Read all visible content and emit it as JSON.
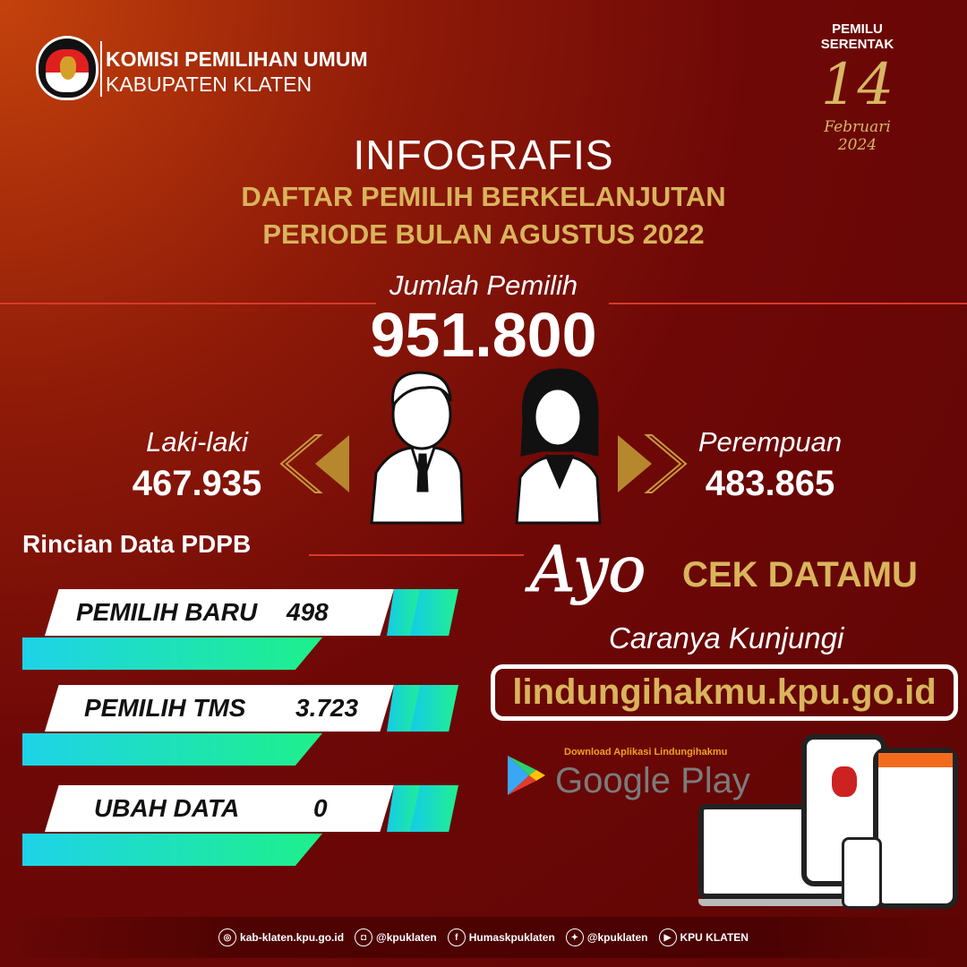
{
  "header": {
    "org_name": "KOMISI PEMILIHAN UMUM",
    "org_region": "KABUPATEN KLATEN",
    "logo_text": "KOMISI PEMILIHAN UMUM"
  },
  "badge": {
    "line1": "PEMILU",
    "line2": "SERENTAK",
    "day": "14",
    "month": "Februari",
    "year": "2024"
  },
  "title": {
    "main": "INFOGRAFIS",
    "sub1": "DAFTAR PEMILIH BERKELANJUTAN",
    "sub2": "PERIODE BULAN AGUSTUS 2022"
  },
  "total": {
    "label": "Jumlah Pemilih",
    "value": "951.800"
  },
  "gender": {
    "male_label": "Laki-laki",
    "male_value": "467.935",
    "female_label": "Perempuan",
    "female_value": "483.865"
  },
  "rincian": {
    "title": "Rincian Data PDPB",
    "items": [
      {
        "label": "PEMILIH BARU",
        "value": "498"
      },
      {
        "label": "PEMILIH TMS",
        "value": "3.723"
      },
      {
        "label": "UBAH DATA",
        "value": "0"
      }
    ]
  },
  "cta": {
    "ayo": "Ayo",
    "cek": "CEK DATAMU",
    "caranya": "Caranya Kunjungi",
    "url": "lindungihakmu.kpu.go.id"
  },
  "googleplay": {
    "caption": "Download Aplikasi Lindungihakmu",
    "label": "Google Play"
  },
  "footer": [
    {
      "icon": "globe-icon",
      "text": "kab-klaten.kpu.go.id"
    },
    {
      "icon": "instagram-icon",
      "text": "@kpuklaten"
    },
    {
      "icon": "facebook-icon",
      "text": "Humaskpuklaten"
    },
    {
      "icon": "twitter-icon",
      "text": "@kpuklaten"
    },
    {
      "icon": "youtube-icon",
      "text": "KPU KLATEN"
    }
  ],
  "colors": {
    "background": "#6e0807",
    "gold": "#d9b45c",
    "bar_gradient_start": "#1ed3e8",
    "bar_gradient_end": "#1ef08a"
  }
}
